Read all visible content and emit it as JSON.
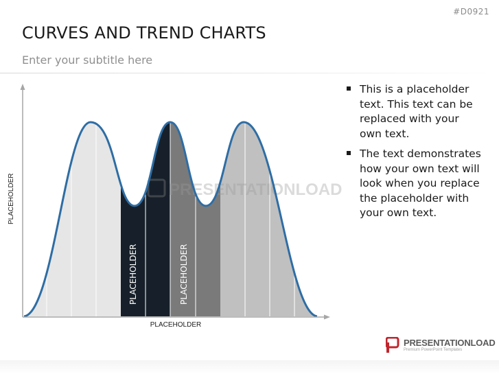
{
  "slide": {
    "id": "#D0921",
    "title": "CURVES AND TREND CHARTS",
    "subtitle": "Enter your subtitle here"
  },
  "chart": {
    "y_axis_label": "PLACEHOLDER",
    "x_axis_label": "PLACEHOLDER",
    "segment_labels": [
      "PLACEHOLDER",
      "PLACEHOLDER"
    ],
    "watermark": "PRESENTATIONLOAD",
    "colors": {
      "curve": "#2e6da4",
      "fill_light": "#e6e6e6",
      "fill_dark": "#17202a",
      "fill_mid": "#7a7a7a",
      "fill_gray": "#c0c0c0",
      "axis": "#a6a6a6"
    }
  },
  "bullets": [
    "This is a placeholder text. This text can be replaced with your own text.",
    "The text demonstrates how your own text will look when you replace the placeholder with your own text."
  ],
  "logo": {
    "brand": "PRESENTATIONLOAD",
    "tagline": "Premium PowerPoint Templates",
    "icon": "presentationload-logo-icon"
  }
}
